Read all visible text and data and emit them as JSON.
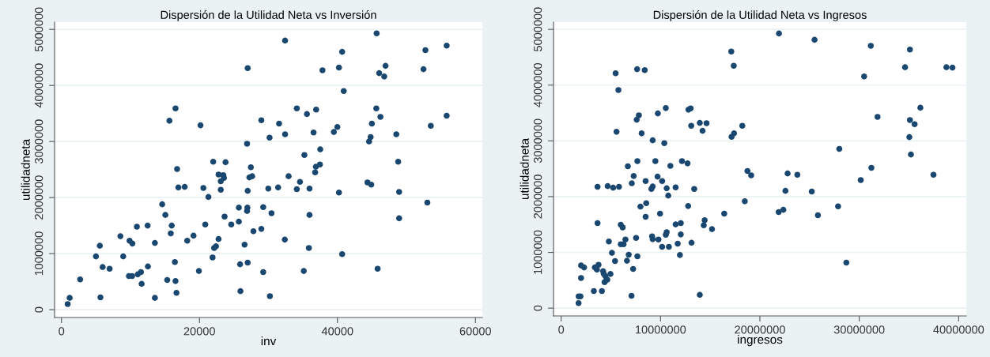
{
  "chart_data": [
    {
      "type": "scatter",
      "title": "Dispersión de la Utilidad Neta vs Inversión",
      "xlabel": "inv",
      "ylabel": "utilidadneta",
      "color": "#1a476f",
      "marker": "circle",
      "grid": "y",
      "xlim": [
        -1000,
        61000
      ],
      "ylim": [
        -140000,
        5130000
      ],
      "xticks": [
        0,
        20000,
        40000,
        60000
      ],
      "yticks": [
        0,
        1000000,
        2000000,
        3000000,
        4000000,
        5000000
      ],
      "x": [
        900,
        1190,
        2710,
        5000,
        5560,
        5650,
        5970,
        6980,
        8540,
        8950,
        9870,
        9780,
        10240,
        10280,
        10930,
        11060,
        11520,
        11620,
        12490,
        12530,
        13540,
        13540,
        14600,
        15060,
        15330,
        15650,
        15840,
        15980,
        16440,
        16530,
        16530,
        16670,
        16760,
        16940,
        17860,
        18230,
        19140,
        19920,
        20150,
        20570,
        20840,
        21300,
        21900,
        21990,
        22130,
        22400,
        22770,
        22770,
        23090,
        23090,
        23460,
        23550,
        23640,
        23780,
        24610,
        25710,
        25710,
        25890,
        25940,
        26540,
        26900,
        26990,
        26990,
        26950,
        26900,
        26990,
        27230,
        27450,
        27640,
        27820,
        28970,
        28970,
        29240,
        29240,
        29980,
        30160,
        30210,
        30440,
        31400,
        31540,
        32410,
        32410,
        32370,
        32920,
        34110,
        34110,
        34570,
        35120,
        35210,
        35580,
        35860,
        35950,
        35950,
        36540,
        36770,
        36870,
        36910,
        37460,
        37510,
        37830,
        39480,
        39990,
        40220,
        40220,
        40680,
        40680,
        40910,
        44350,
        44580,
        44810,
        44900,
        44990,
        45630,
        45680,
        45820,
        46050,
        46230,
        46780,
        46970,
        48530,
        48800,
        48940,
        48940,
        52470,
        52750,
        53030,
        53530,
        55830,
        55830
      ],
      "values": [
        100000,
        210000,
        540000,
        950000,
        1140000,
        220000,
        760000,
        730000,
        1310000,
        950000,
        1230000,
        600000,
        600000,
        1180000,
        1480000,
        630000,
        670000,
        460000,
        1500000,
        770000,
        1190000,
        210000,
        1880000,
        1690000,
        530000,
        3370000,
        1360000,
        1500000,
        850000,
        3590000,
        510000,
        300000,
        2510000,
        2180000,
        2190000,
        1230000,
        1320000,
        690000,
        3290000,
        2170000,
        1520000,
        2010000,
        930000,
        2640000,
        1100000,
        1130000,
        1260000,
        2410000,
        2290000,
        2140000,
        2400000,
        2350000,
        1660000,
        2630000,
        1520000,
        1820000,
        1570000,
        810000,
        330000,
        1160000,
        2960000,
        4310000,
        2120000,
        1820000,
        1760000,
        840000,
        2360000,
        2540000,
        2380000,
        1400000,
        3380000,
        1440000,
        1830000,
        670000,
        2160000,
        3070000,
        240000,
        1720000,
        2180000,
        3320000,
        4800000,
        3130000,
        1250000,
        2380000,
        3590000,
        2150000,
        2280000,
        690000,
        2760000,
        3490000,
        1100000,
        2160000,
        1690000,
        3160000,
        2450000,
        2550000,
        3570000,
        2590000,
        2860000,
        4270000,
        3170000,
        3260000,
        4320000,
        2090000,
        4600000,
        990000,
        3900000,
        2270000,
        3000000,
        3080000,
        2230000,
        3320000,
        3590000,
        4930000,
        730000,
        4220000,
        3440000,
        4160000,
        4350000,
        3130000,
        2640000,
        2100000,
        1630000,
        4290000,
        4630000,
        1910000,
        3280000,
        4710000,
        3460000
      ]
    },
    {
      "type": "scatter",
      "title": "Dispersión de la Utilidad Neta vs Ingresos",
      "xlabel": "ingresos",
      "ylabel": "utilidadneta",
      "color": "#1a476f",
      "marker": "circle",
      "grid": "y",
      "xlim": [
        -770000,
        40770000
      ],
      "ylim": [
        -140000,
        5130000
      ],
      "xticks": [
        0,
        10000000,
        20000000,
        30000000,
        40000000
      ],
      "yticks": [
        0,
        1000000,
        2000000,
        3000000,
        4000000,
        5000000
      ],
      "x": [
        1750000,
        1760000,
        1940000,
        2000000,
        2000000,
        2310000,
        3290000,
        3390000,
        3600000,
        3660000,
        3660000,
        3760000,
        4100000,
        4220000,
        4280000,
        4370000,
        4430000,
        4560000,
        4650000,
        4680000,
        4800000,
        4960000,
        5110000,
        5230000,
        5420000,
        5480000,
        5570000,
        5760000,
        5820000,
        6000000,
        6000000,
        6190000,
        6280000,
        6470000,
        6620000,
        6710000,
        6800000,
        7080000,
        7110000,
        7240000,
        7300000,
        7540000,
        7600000,
        7640000,
        7670000,
        7670000,
        7820000,
        7980000,
        8100000,
        8410000,
        8500000,
        8500000,
        8560000,
        9080000,
        9210000,
        9210000,
        9150000,
        9210000,
        9480000,
        9700000,
        9730000,
        9790000,
        9950000,
        10160000,
        10160000,
        10380000,
        10530000,
        10530000,
        10620000,
        10620000,
        10780000,
        10840000,
        10990000,
        11520000,
        11520000,
        11730000,
        11950000,
        12040000,
        12040000,
        12160000,
        12720000,
        12780000,
        12810000,
        13030000,
        13090000,
        13120000,
        13390000,
        13950000,
        13950000,
        14230000,
        14350000,
        14440000,
        14630000,
        15180000,
        16410000,
        17120000,
        17150000,
        17370000,
        17400000,
        18230000,
        18480000,
        18750000,
        19120000,
        21890000,
        21920000,
        22360000,
        22570000,
        22790000,
        23770000,
        25220000,
        25500000,
        25840000,
        27870000,
        27990000,
        28700000,
        30150000,
        30490000,
        31160000,
        31220000,
        31840000,
        34610000,
        35040000,
        35100000,
        35100000,
        35200000,
        35570000,
        36150000,
        37470000,
        38770000,
        39380000
      ],
      "values": [
        91000,
        210000,
        210000,
        540000,
        765000,
        730000,
        306000,
        730000,
        690000,
        1525000,
        2177000,
        777000,
        306000,
        663000,
        618000,
        465000,
        578000,
        510000,
        510000,
        2188000,
        1196000,
        612000,
        992000,
        2160000,
        845000,
        4212000,
        3163000,
        3912000,
        2177000,
        1497000,
        1145000,
        1446000,
        1145000,
        1230000,
        850000,
        2545000,
        958000,
        221000,
        2239000,
        703000,
        2370000,
        1259000,
        3379000,
        4286000,
        2636000,
        930000,
        3458000,
        1820000,
        3135000,
        4269000,
        2279000,
        1638000,
        1882000,
        2137000,
        3010000,
        2182000,
        1287000,
        1236000,
        2636000,
        2358000,
        3492000,
        1230000,
        1695000,
        2279000,
        1100000,
        2959000,
        3588000,
        1315000,
        2149000,
        1361000,
        2018000,
        1100000,
        2551000,
        2166000,
        1502000,
        1156000,
        952000,
        1525000,
        1321000,
        2636000,
        2596000,
        1831000,
        3560000,
        3583000,
        3271000,
        1173000,
        2137000,
        3322000,
        238000,
        3180000,
        1485000,
        1576000,
        3316000,
        1417000,
        1695000,
        4603000,
        3073000,
        4348000,
        3135000,
        3271000,
        1916000,
        2460000,
        2381000,
        1723000,
        4926000,
        1763000,
        2103000,
        2415000,
        2392000,
        2092000,
        4813000,
        1667000,
        1825000,
        2857000,
        816000,
        2296000,
        4155000,
        4705000,
        2517000,
        3430000,
        4320000,
        3067000,
        4637000,
        3373000,
        2755000,
        3299000,
        3594000,
        2392000,
        4320000,
        4314000
      ]
    }
  ]
}
